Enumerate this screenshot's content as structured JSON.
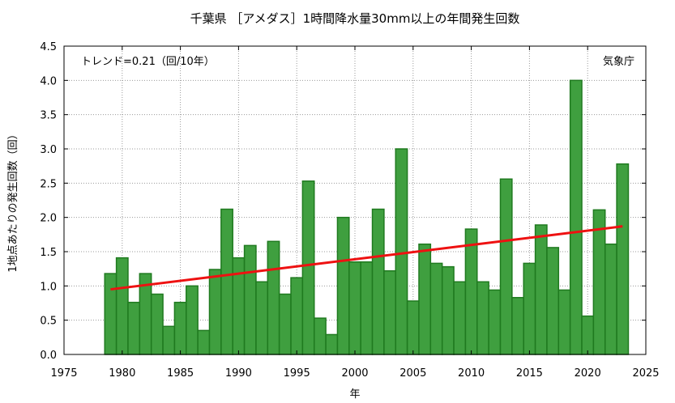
{
  "chart_data": {
    "type": "bar",
    "title": "千葉県 ［アメダス］1時間降水量30mm以上の年間発生回数",
    "xlabel": "年",
    "ylabel": "1地点あたりの発生回数（回）",
    "trend_label": "トレンド=0.21（回/10年）",
    "source": "気象庁",
    "xlim": [
      1975,
      2025
    ],
    "ylim": [
      0.0,
      4.5
    ],
    "xticks": [
      "1975",
      "1980",
      "1985",
      "1990",
      "1995",
      "2000",
      "2005",
      "2010",
      "2015",
      "2020",
      "2025"
    ],
    "yticks": [
      "0.0",
      "0.5",
      "1.0",
      "1.5",
      "2.0",
      "2.5",
      "3.0",
      "3.5",
      "4.0",
      "4.5"
    ],
    "grid": true,
    "x": [
      1979,
      1980,
      1981,
      1982,
      1983,
      1984,
      1985,
      1986,
      1987,
      1988,
      1989,
      1990,
      1991,
      1992,
      1993,
      1994,
      1995,
      1996,
      1997,
      1998,
      1999,
      2000,
      2001,
      2002,
      2003,
      2004,
      2005,
      2006,
      2007,
      2008,
      2009,
      2010,
      2011,
      2012,
      2013,
      2014,
      2015,
      2016,
      2017,
      2018,
      2019,
      2020,
      2021,
      2022,
      2023
    ],
    "values": [
      1.18,
      1.41,
      0.76,
      1.18,
      0.88,
      0.41,
      0.76,
      1.0,
      0.35,
      1.24,
      2.12,
      1.41,
      1.59,
      1.06,
      1.65,
      0.88,
      1.12,
      2.53,
      0.53,
      0.29,
      2.0,
      1.35,
      1.35,
      2.12,
      1.22,
      3.0,
      0.78,
      1.61,
      1.33,
      1.28,
      1.06,
      1.83,
      1.06,
      0.94,
      2.56,
      0.83,
      1.33,
      1.89,
      1.56,
      0.94,
      4.0,
      0.56,
      2.11,
      1.61,
      2.78
    ],
    "trend": {
      "x": [
        1979,
        2023
      ],
      "y": [
        0.95,
        1.87
      ]
    },
    "colors": {
      "bar_fill": "#3f9f3f",
      "bar_edge": "#1f7a1f",
      "trend": "#ee1111"
    }
  }
}
